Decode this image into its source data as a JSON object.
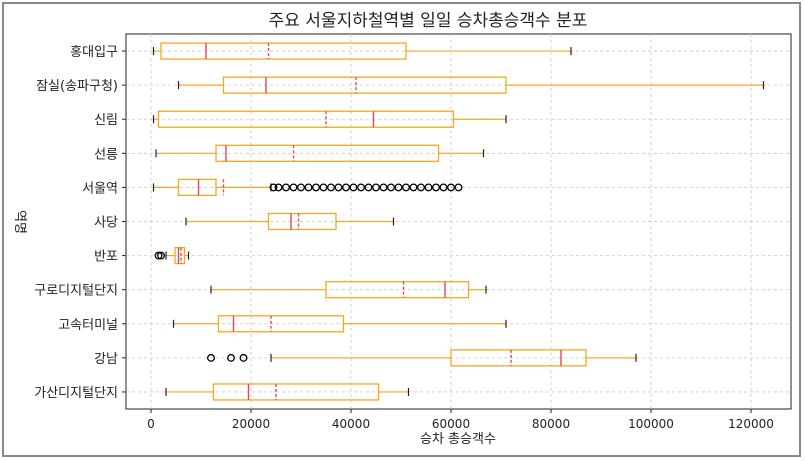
{
  "chart_data": {
    "type": "boxplot",
    "orientation": "horizontal",
    "title": "주요 서울지하철역별 일일 승차총승객수 분포",
    "xlabel": "승차 총승객수",
    "ylabel": "역명",
    "xlim": [
      -5000,
      128000
    ],
    "xticks": [
      0,
      20000,
      40000,
      60000,
      80000,
      100000,
      120000
    ],
    "xtick_labels": [
      "0",
      "20000",
      "40000",
      "60000",
      "80000",
      "100000",
      "120000"
    ],
    "grid": true,
    "colors": {
      "box": "#f5a623",
      "median": "#e8474b",
      "mean": "#e8474b",
      "whisker": "#f5a623",
      "flier": "#000000",
      "grid": "#c8c8c8"
    },
    "categories": [
      "홍대입구",
      "잠실(송파구청)",
      "신림",
      "선릉",
      "서울역",
      "사당",
      "반포",
      "구로디지털단지",
      "고속터미널",
      "강남",
      "가산디지털단지"
    ],
    "boxes": [
      {
        "label": "홍대입구",
        "whislo": 500,
        "q1": 2000,
        "med": 11000,
        "mean": 23500,
        "q3": 51000,
        "whishi": 84000,
        "fliers": []
      },
      {
        "label": "잠실(송파구청)",
        "whislo": 5500,
        "q1": 14500,
        "med": 23000,
        "mean": 41000,
        "q3": 71000,
        "whishi": 122500,
        "fliers": []
      },
      {
        "label": "신림",
        "whislo": 500,
        "q1": 1500,
        "med": 44500,
        "mean": 35000,
        "q3": 60500,
        "whishi": 71000,
        "fliers": []
      },
      {
        "label": "선릉",
        "whislo": 1000,
        "q1": 13000,
        "med": 15000,
        "mean": 28500,
        "q3": 57500,
        "whishi": 66500,
        "fliers": []
      },
      {
        "label": "서울역",
        "whislo": 500,
        "q1": 5500,
        "med": 9500,
        "mean": 14500,
        "q3": 13000,
        "whishi": 24000,
        "fliers": [
          24500,
          25500,
          27000,
          28500,
          30000,
          31500,
          33000,
          34500,
          36000,
          37500,
          39000,
          40500,
          42000,
          43500,
          45000,
          46500,
          48000,
          49500,
          51000,
          52500,
          54000,
          55500,
          57000,
          58500,
          60000,
          61500
        ]
      },
      {
        "label": "사당",
        "whislo": 7000,
        "q1": 23500,
        "med": 28000,
        "mean": 29500,
        "q3": 37000,
        "whishi": 48500,
        "fliers": []
      },
      {
        "label": "반포",
        "whislo": 3000,
        "q1": 4800,
        "med": 5500,
        "mean": 6000,
        "q3": 6700,
        "whishi": 7500,
        "fliers": [
          1500,
          2000
        ]
      },
      {
        "label": "구로디지털단지",
        "whislo": 12000,
        "q1": 35000,
        "med": 58800,
        "mean": 50500,
        "q3": 63500,
        "whishi": 67000,
        "fliers": []
      },
      {
        "label": "고속터미널",
        "whislo": 4500,
        "q1": 13500,
        "med": 16500,
        "mean": 24000,
        "q3": 38500,
        "whishi": 71000,
        "fliers": []
      },
      {
        "label": "강남",
        "whislo": 24000,
        "q1": 60000,
        "med": 82000,
        "mean": 72000,
        "q3": 87000,
        "whishi": 97000,
        "fliers": [
          12000,
          16000,
          18500
        ]
      },
      {
        "label": "가산디지털단지",
        "whislo": 3000,
        "q1": 12500,
        "med": 19500,
        "mean": 25000,
        "q3": 45500,
        "whishi": 51500,
        "fliers": []
      }
    ]
  }
}
